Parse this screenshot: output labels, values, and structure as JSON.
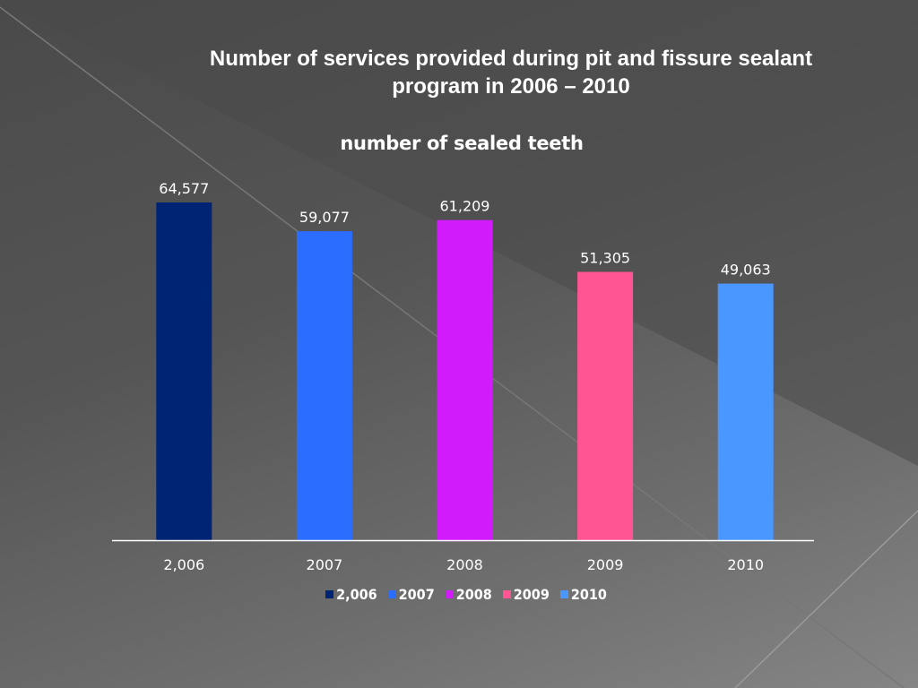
{
  "slide": {
    "title_line1": "Number of services provided during pit and fissure sealant",
    "title_line2": "program in 2006 – 2010"
  },
  "chart_data": {
    "type": "bar",
    "title": "number of sealed teeth",
    "categories": [
      "2,006",
      "2007",
      "2008",
      "2009",
      "2010"
    ],
    "values": [
      64577,
      59077,
      61209,
      51305,
      49063
    ],
    "data_labels": [
      "64,577",
      "59,077",
      "61,209",
      "51,305",
      "49,063"
    ],
    "colors": [
      "#002474",
      "#2b6dff",
      "#d21bfa",
      "#ff5593",
      "#4a97ff"
    ],
    "legend": [
      "2,006",
      "2007",
      "2008",
      "2009",
      "2010"
    ],
    "legend_position": "bottom",
    "xlabel": "",
    "ylabel": "",
    "ylim": [
      0,
      70000
    ],
    "grid": false
  }
}
